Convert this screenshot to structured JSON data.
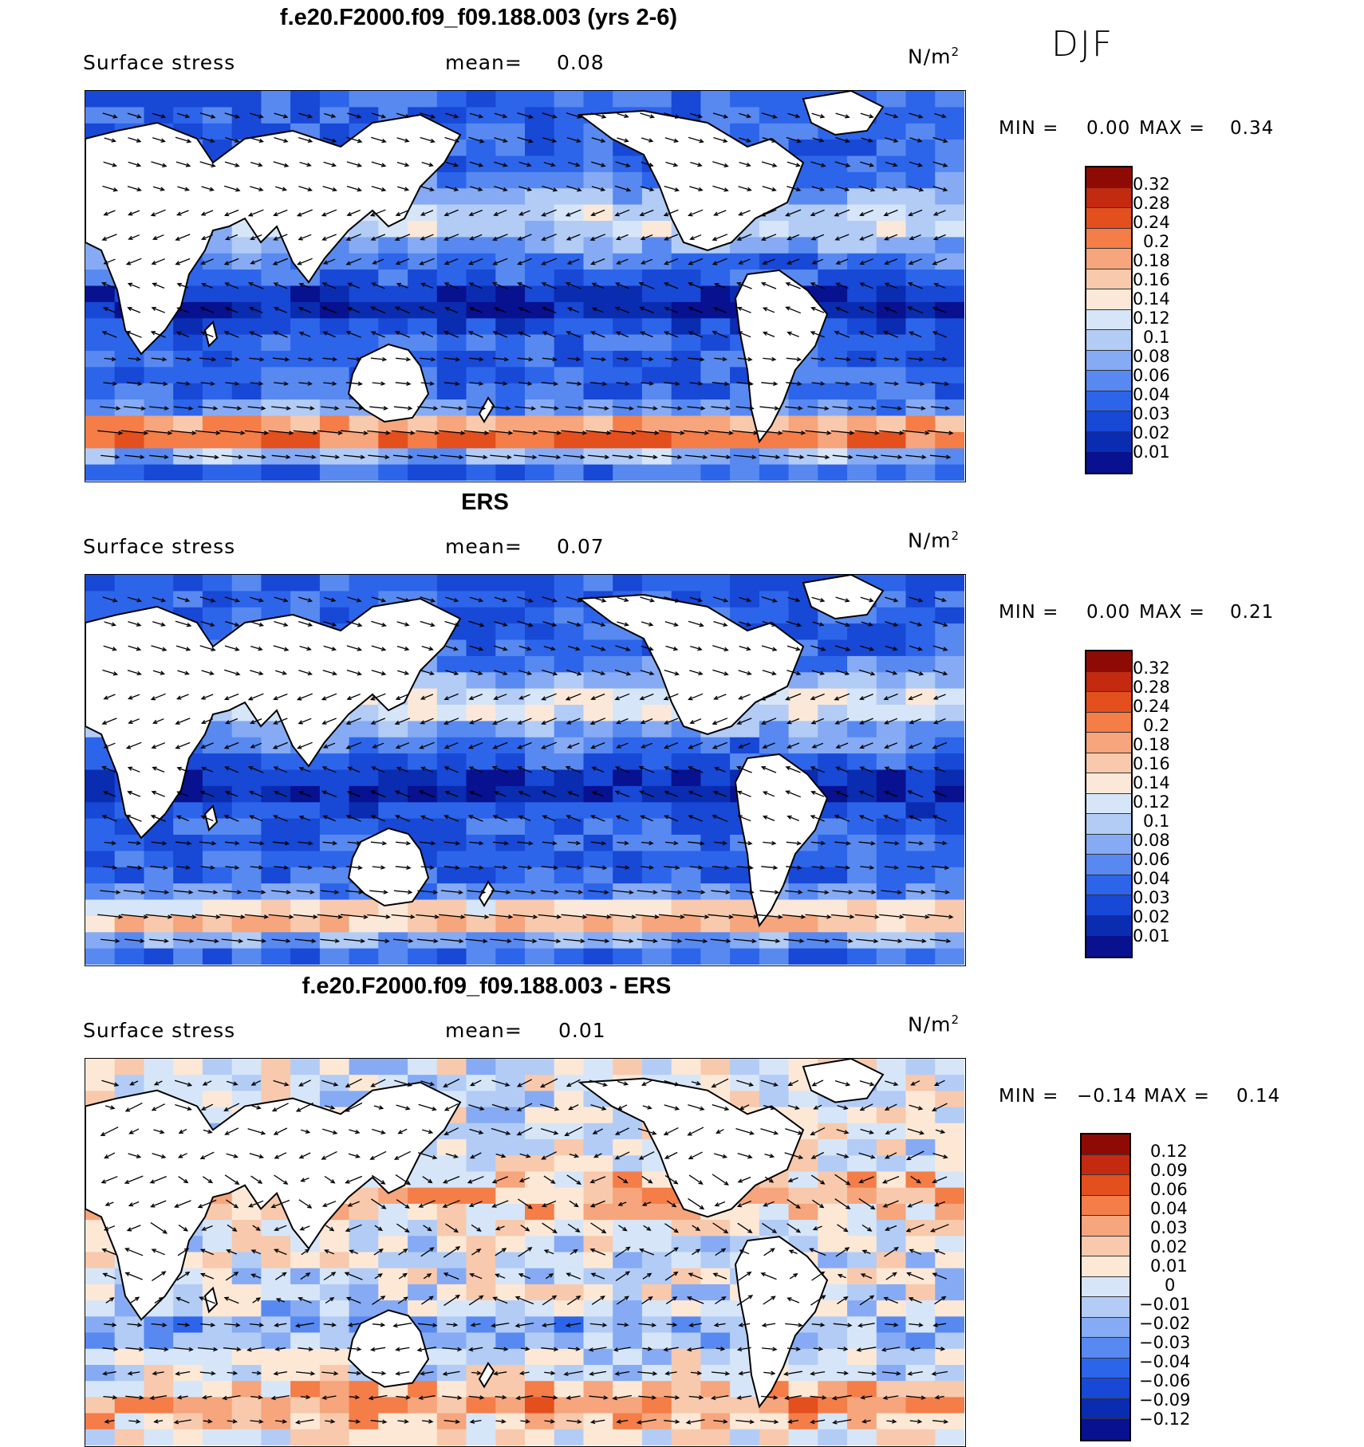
{
  "season": "DJF",
  "units_label": "N/m",
  "units_sup": "2",
  "colors": {
    "land": "#ffffff",
    "coast": "#000000",
    "seq_scale": [
      "#08118f",
      "#0a2cb0",
      "#1748d6",
      "#2c65ea",
      "#5889f0",
      "#86abf4",
      "#b2ccf6",
      "#d6e6f8",
      "#fbe8d8",
      "#f8c9ac",
      "#f6a57c",
      "#f47d48",
      "#e44f1e",
      "#c42a10",
      "#8e0b05"
    ],
    "div_scale": [
      "#08118f",
      "#0a2cb0",
      "#1748d6",
      "#2c65ea",
      "#5889f0",
      "#86abf4",
      "#b2ccf6",
      "#d6e6f8",
      "#fde8d6",
      "#f8c9ac",
      "#f6a57c",
      "#f47d48",
      "#e44f1e",
      "#c42a10",
      "#8e0b05"
    ]
  },
  "panels": [
    {
      "title": "f.e20.F2000.f09_f09.188.003 (yrs 2-6)",
      "variable": "Surface stress",
      "mean_label": "mean=",
      "mean_value": "0.08",
      "min_label": "MIN =",
      "min_value": "0.00",
      "max_label": "MAX =",
      "max_value": "0.34",
      "levels": [
        "0.32",
        "0.28",
        "0.24",
        "0.2",
        "0.18",
        "0.16",
        "0.14",
        "0.12",
        "0.1",
        "0.08",
        "0.06",
        "0.04",
        "0.03",
        "0.02",
        "0.01"
      ]
    },
    {
      "title": "ERS",
      "variable": "Surface stress",
      "mean_label": "mean=",
      "mean_value": "0.07",
      "min_label": "MIN =",
      "min_value": "0.00",
      "max_label": "MAX =",
      "max_value": "0.21",
      "levels": [
        "0.32",
        "0.28",
        "0.24",
        "0.2",
        "0.18",
        "0.16",
        "0.14",
        "0.12",
        "0.1",
        "0.08",
        "0.06",
        "0.04",
        "0.03",
        "0.02",
        "0.01"
      ]
    },
    {
      "title": "f.e20.F2000.f09_f09.188.003 - ERS",
      "variable": "Surface stress",
      "mean_label": "mean=",
      "mean_value": "0.01",
      "min_label": "MIN =",
      "min_value": "−0.14",
      "max_label": "MAX =",
      "max_value": "0.14",
      "levels": [
        "0.12",
        "0.09",
        "0.06",
        "0.04",
        "0.03",
        "0.02",
        "0.01",
        "0",
        "−0.01",
        "−0.02",
        "−0.03",
        "−0.04",
        "−0.06",
        "−0.09",
        "−0.12"
      ]
    }
  ]
}
